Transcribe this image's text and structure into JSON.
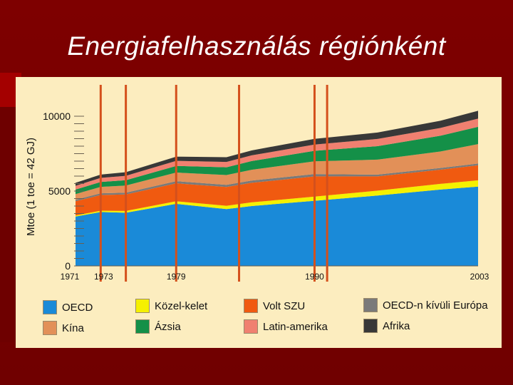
{
  "title": "Energiafelhasználás régiónként",
  "chart_data": {
    "type": "area",
    "stacked": true,
    "ylabel": "Mtoe (1 toe = 42 GJ)",
    "xlabel": "",
    "xlim": [
      1971,
      2003
    ],
    "ylim": [
      0,
      10000
    ],
    "yticks": [
      0,
      5000,
      10000
    ],
    "xtick_labels": [
      {
        "x": 1971,
        "label": "1971"
      },
      {
        "x": 1973,
        "label": "1973"
      },
      {
        "x": 1979,
        "label": "1979"
      },
      {
        "x": 1990,
        "label": "1990"
      },
      {
        "x": 2003,
        "label": "2003"
      }
    ],
    "marker_years": [
      1973,
      1975,
      1979,
      1984,
      1990,
      1991
    ],
    "x": [
      1971,
      1973,
      1975,
      1979,
      1983,
      1985,
      1990,
      1995,
      2000,
      2003
    ],
    "series": [
      {
        "name": "OECD",
        "color": "#1a8ad8",
        "values": [
          3300,
          3600,
          3550,
          4150,
          3800,
          4000,
          4350,
          4700,
          5100,
          5300
        ]
      },
      {
        "name": "Közel-kelet",
        "color": "#f5f000",
        "values": [
          70,
          90,
          120,
          170,
          220,
          250,
          280,
          330,
          380,
          420
        ]
      },
      {
        "name": "Volt SZU",
        "color": "#f05a10",
        "values": [
          950,
          1050,
          1100,
          1200,
          1250,
          1300,
          1350,
          950,
          950,
          1000
        ]
      },
      {
        "name": "OECD-n kívüli Európa",
        "color": "#7a7a7a",
        "values": [
          100,
          110,
          120,
          140,
          150,
          155,
          160,
          120,
          115,
          120
        ]
      },
      {
        "name": "Kína",
        "color": "#e29058",
        "values": [
          380,
          430,
          480,
          580,
          650,
          720,
          850,
          1000,
          1100,
          1300
        ]
      },
      {
        "name": "Ázsia",
        "color": "#149048",
        "values": [
          300,
          330,
          360,
          440,
          520,
          580,
          700,
          900,
          1050,
          1150
        ]
      },
      {
        "name": "Latin-amerika",
        "color": "#f08070",
        "values": [
          250,
          270,
          290,
          340,
          360,
          380,
          420,
          480,
          520,
          550
        ]
      },
      {
        "name": "Afrika",
        "color": "#383838",
        "values": [
          200,
          220,
          240,
          280,
          310,
          330,
          380,
          430,
          480,
          520
        ]
      }
    ]
  },
  "legend": {
    "items": [
      {
        "label": "OECD",
        "color": "#1a8ad8"
      },
      {
        "label": "Közel-kelet",
        "color": "#f5f000"
      },
      {
        "label": "Volt SZU",
        "color": "#f05a10"
      },
      {
        "label": "OECD-n kívüli Európa",
        "color": "#7a7a7a"
      },
      {
        "label": "Kína",
        "color": "#e29058"
      },
      {
        "label": "Ázsia",
        "color": "#149048"
      },
      {
        "label": "Latin-amerika",
        "color": "#f08070"
      },
      {
        "label": "Afrika",
        "color": "#383838"
      }
    ]
  }
}
